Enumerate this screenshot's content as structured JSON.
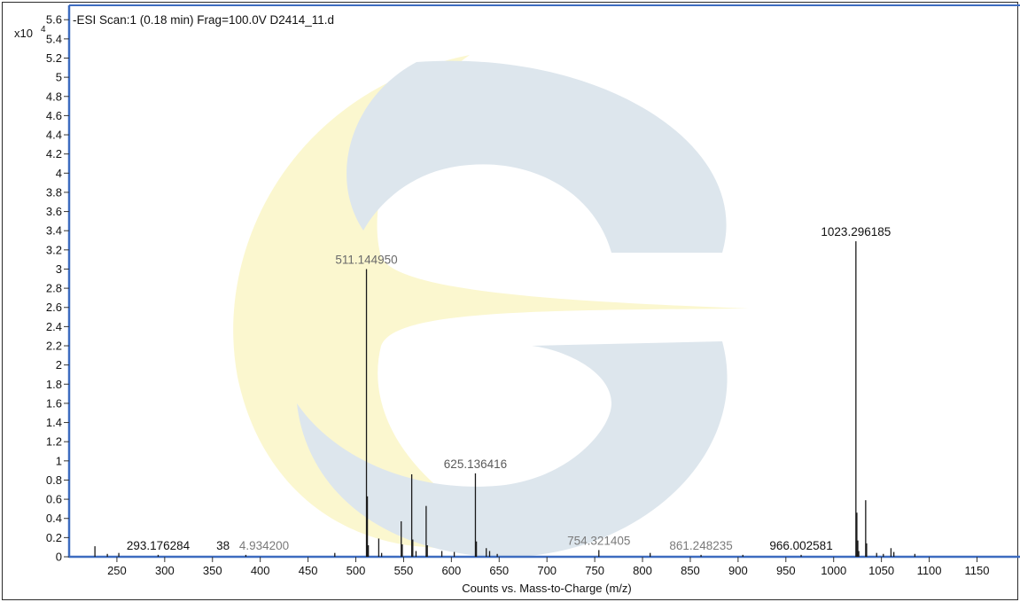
{
  "chart_data": {
    "type": "bar",
    "title": "-ESI Scan:1 (0.18 min) Frag=100.0V D2414_11.d",
    "xlabel": "Counts vs. Mass-to-Charge (m/z)",
    "ylabel": "",
    "y_multiplier_base": "x10",
    "y_multiplier_exp": "4",
    "xlim": [
      200,
      1195
    ],
    "ylim": [
      0,
      5.75
    ],
    "grid": false,
    "x_ticks": [
      250,
      300,
      350,
      400,
      450,
      500,
      550,
      600,
      650,
      700,
      750,
      800,
      850,
      900,
      950,
      1000,
      1050,
      1100,
      1150
    ],
    "x_tick_labels": [
      "250",
      "300",
      "350",
      "400",
      "450",
      "500",
      "550",
      "600",
      "650",
      "700",
      "750",
      "800",
      "850",
      "900",
      "950",
      "1000",
      "1050",
      "1100",
      "1150"
    ],
    "y_ticks": [
      0,
      0.2,
      0.4,
      0.6,
      0.8,
      1,
      1.2,
      1.4,
      1.6,
      1.8,
      2,
      2.2,
      2.4,
      2.6,
      2.8,
      3,
      3.2,
      3.4,
      3.6,
      3.8,
      4,
      4.2,
      4.4,
      4.6,
      4.8,
      5,
      5.2,
      5.4,
      5.6
    ],
    "y_tick_labels": [
      "0",
      "0.2",
      "0.4",
      "0.6",
      "0.8",
      "1",
      "1.2",
      "1.4",
      "1.6",
      "1.8",
      "2",
      "2.2",
      "2.4",
      "2.6",
      "2.8",
      "3",
      "3.2",
      "3.4",
      "3.6",
      "3.8",
      "4",
      "4.2",
      "4.4",
      "4.6",
      "4.8",
      "5",
      "5.2",
      "5.4",
      "5.6"
    ],
    "peaks": [
      {
        "mz": 227,
        "counts": 0.11
      },
      {
        "mz": 240,
        "counts": 0.03
      },
      {
        "mz": 252,
        "counts": 0.04
      },
      {
        "mz": 293.176284,
        "counts": 0.02
      },
      {
        "mz": 384.9342,
        "counts": 0.02
      },
      {
        "mz": 478,
        "counts": 0.04
      },
      {
        "mz": 511.14495,
        "counts": 3.0
      },
      {
        "mz": 512.1,
        "counts": 0.63
      },
      {
        "mz": 513.1,
        "counts": 0.12
      },
      {
        "mz": 524,
        "counts": 0.19
      },
      {
        "mz": 527,
        "counts": 0.04
      },
      {
        "mz": 547.5,
        "counts": 0.37
      },
      {
        "mz": 548.6,
        "counts": 0.13
      },
      {
        "mz": 558.5,
        "counts": 0.86
      },
      {
        "mz": 559.6,
        "counts": 0.18
      },
      {
        "mz": 563,
        "counts": 0.06
      },
      {
        "mz": 573.6,
        "counts": 0.53
      },
      {
        "mz": 574.8,
        "counts": 0.12
      },
      {
        "mz": 590,
        "counts": 0.06
      },
      {
        "mz": 603,
        "counts": 0.05
      },
      {
        "mz": 625.136416,
        "counts": 0.87
      },
      {
        "mz": 626.2,
        "counts": 0.16
      },
      {
        "mz": 636.5,
        "counts": 0.09
      },
      {
        "mz": 640,
        "counts": 0.06
      },
      {
        "mz": 648,
        "counts": 0.03
      },
      {
        "mz": 754.321405,
        "counts": 0.07
      },
      {
        "mz": 808,
        "counts": 0.04
      },
      {
        "mz": 861.248235,
        "counts": 0.02
      },
      {
        "mz": 905,
        "counts": 0.02
      },
      {
        "mz": 966.002581,
        "counts": 0.02
      },
      {
        "mz": 1023.296185,
        "counts": 3.29
      },
      {
        "mz": 1024.3,
        "counts": 0.46
      },
      {
        "mz": 1025.3,
        "counts": 0.17
      },
      {
        "mz": 1026.3,
        "counts": 0.06
      },
      {
        "mz": 1033.5,
        "counts": 0.59
      },
      {
        "mz": 1034.5,
        "counts": 0.14
      },
      {
        "mz": 1045,
        "counts": 0.04
      },
      {
        "mz": 1052,
        "counts": 0.03
      },
      {
        "mz": 1060,
        "counts": 0.09
      },
      {
        "mz": 1063,
        "counts": 0.05
      },
      {
        "mz": 1085,
        "counts": 0.03
      }
    ],
    "annotations": [
      {
        "text": "511.144950",
        "mz": 511.14495,
        "counts": 3.0,
        "color": "#6a6a6a"
      },
      {
        "text": "1023.296185",
        "mz": 1023.296185,
        "counts": 3.29,
        "color": "#111111"
      },
      {
        "text": "625.136416",
        "mz": 625.136416,
        "counts": 0.87,
        "color": "#5a5a5a"
      },
      {
        "text": "293.176284",
        "mz": 293.176284,
        "counts": 0.02,
        "color": "#111111"
      },
      {
        "text": "38",
        "mz": 361,
        "counts": 0.02,
        "color": "#111111"
      },
      {
        "text": "4.934200",
        "mz": 404,
        "counts": 0.02,
        "color": "#7a7a7a"
      },
      {
        "text": "754.321405",
        "mz": 754.321405,
        "counts": 0.07,
        "color": "#7a7a7a"
      },
      {
        "text": "861.248235",
        "mz": 861.248235,
        "counts": 0.02,
        "color": "#7a7a7a"
      },
      {
        "text": "966.002581",
        "mz": 966.002581,
        "counts": 0.02,
        "color": "#111111"
      }
    ],
    "colors": {
      "axis_blue": "#3d6cc0",
      "peak": "#1a1a1a",
      "watermark_yellow": "#fbf7cf",
      "watermark_blue": "#dde6ed"
    }
  }
}
